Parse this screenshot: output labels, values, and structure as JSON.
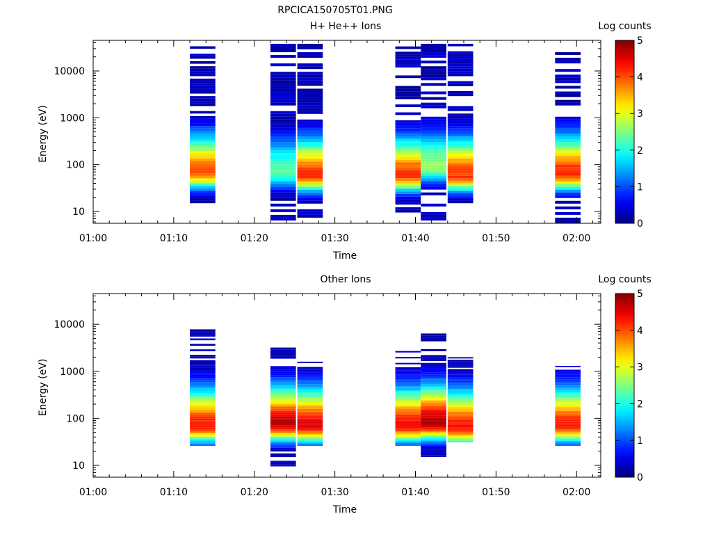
{
  "figure": {
    "title": "RPCICA150705T01.PNG"
  },
  "chart_data": [
    {
      "type": "heatmap",
      "title": "H+ He++ Ions",
      "xlabel": "Time",
      "ylabel": "Energy (eV)",
      "x_ticks": [
        "01:00",
        "01:10",
        "01:20",
        "01:30",
        "01:40",
        "01:50",
        "02:00"
      ],
      "xlim": [
        "01:00",
        "02:03"
      ],
      "y_scale": "log",
      "y_ticks": [
        "10",
        "100",
        "1000",
        "10000"
      ],
      "ylim": [
        5.6,
        45000
      ],
      "colorbar": {
        "label": "Log counts",
        "range": [
          0,
          5
        ],
        "ticks": [
          "0",
          "1",
          "2",
          "3",
          "4",
          "5"
        ],
        "colormap": "jet"
      },
      "grid": false,
      "columns": [
        {
          "t_start": "01:12:00",
          "t_end": "01:15:10",
          "e_min": 15,
          "e_max": 38000,
          "peak_energy": 70,
          "peak_log_counts": 4.0
        },
        {
          "t_start": "01:22:00",
          "t_end": "01:25:10",
          "e_min": 5.6,
          "e_max": 38000,
          "peak_energy": 70,
          "peak_log_counts": 2.3
        },
        {
          "t_start": "01:25:20",
          "t_end": "01:28:30",
          "e_min": 5.6,
          "e_max": 38000,
          "peak_energy": 60,
          "peak_log_counts": 4.1
        },
        {
          "t_start": "01:37:30",
          "t_end": "01:40:40",
          "e_min": 9.5,
          "e_max": 38000,
          "peak_energy": 60,
          "peak_log_counts": 4.1
        },
        {
          "t_start": "01:40:40",
          "t_end": "01:43:50",
          "e_min": 5.6,
          "e_max": 38000,
          "peak_energy": 90,
          "peak_log_counts": 2.6
        },
        {
          "t_start": "01:44:00",
          "t_end": "01:47:10",
          "e_min": 15,
          "e_max": 38000,
          "peak_energy": 60,
          "peak_log_counts": 4.1
        },
        {
          "t_start": "01:57:20",
          "t_end": "02:00:30",
          "e_min": 5.6,
          "e_max": 38000,
          "peak_energy": 65,
          "peak_log_counts": 4.2
        }
      ]
    },
    {
      "type": "heatmap",
      "title": "Other Ions",
      "xlabel": "Time",
      "ylabel": "Energy (eV)",
      "x_ticks": [
        "01:00",
        "01:10",
        "01:20",
        "01:30",
        "01:40",
        "01:50",
        "02:00"
      ],
      "xlim": [
        "01:00",
        "02:03"
      ],
      "y_scale": "log",
      "y_ticks": [
        "10",
        "100",
        "1000",
        "10000"
      ],
      "ylim": [
        5.6,
        45000
      ],
      "colorbar": {
        "label": "Log counts",
        "range": [
          0,
          5
        ],
        "ticks": [
          "0",
          "1",
          "2",
          "3",
          "4",
          "5"
        ],
        "colormap": "jet"
      },
      "grid": false,
      "columns": [
        {
          "t_start": "01:12:00",
          "t_end": "01:15:10",
          "e_min": 26,
          "e_max": 7800,
          "peak_energy": 70,
          "peak_log_counts": 4.3
        },
        {
          "t_start": "01:22:00",
          "t_end": "01:25:10",
          "e_min": 9.5,
          "e_max": 3200,
          "peak_energy": 75,
          "peak_log_counts": 4.7
        },
        {
          "t_start": "01:25:20",
          "t_end": "01:28:30",
          "e_min": 26,
          "e_max": 1600,
          "peak_energy": 70,
          "peak_log_counts": 4.5
        },
        {
          "t_start": "01:37:30",
          "t_end": "01:40:40",
          "e_min": 26,
          "e_max": 2700,
          "peak_energy": 70,
          "peak_log_counts": 4.4
        },
        {
          "t_start": "01:40:40",
          "t_end": "01:43:50",
          "e_min": 15,
          "e_max": 7000,
          "peak_energy": 80,
          "peak_log_counts": 4.8
        },
        {
          "t_start": "01:44:00",
          "t_end": "01:47:10",
          "e_min": 31,
          "e_max": 2000,
          "peak_energy": 65,
          "peak_log_counts": 4.3
        },
        {
          "t_start": "01:57:20",
          "t_end": "02:00:30",
          "e_min": 26,
          "e_max": 1300,
          "peak_energy": 70,
          "peak_log_counts": 4.3
        }
      ]
    }
  ]
}
